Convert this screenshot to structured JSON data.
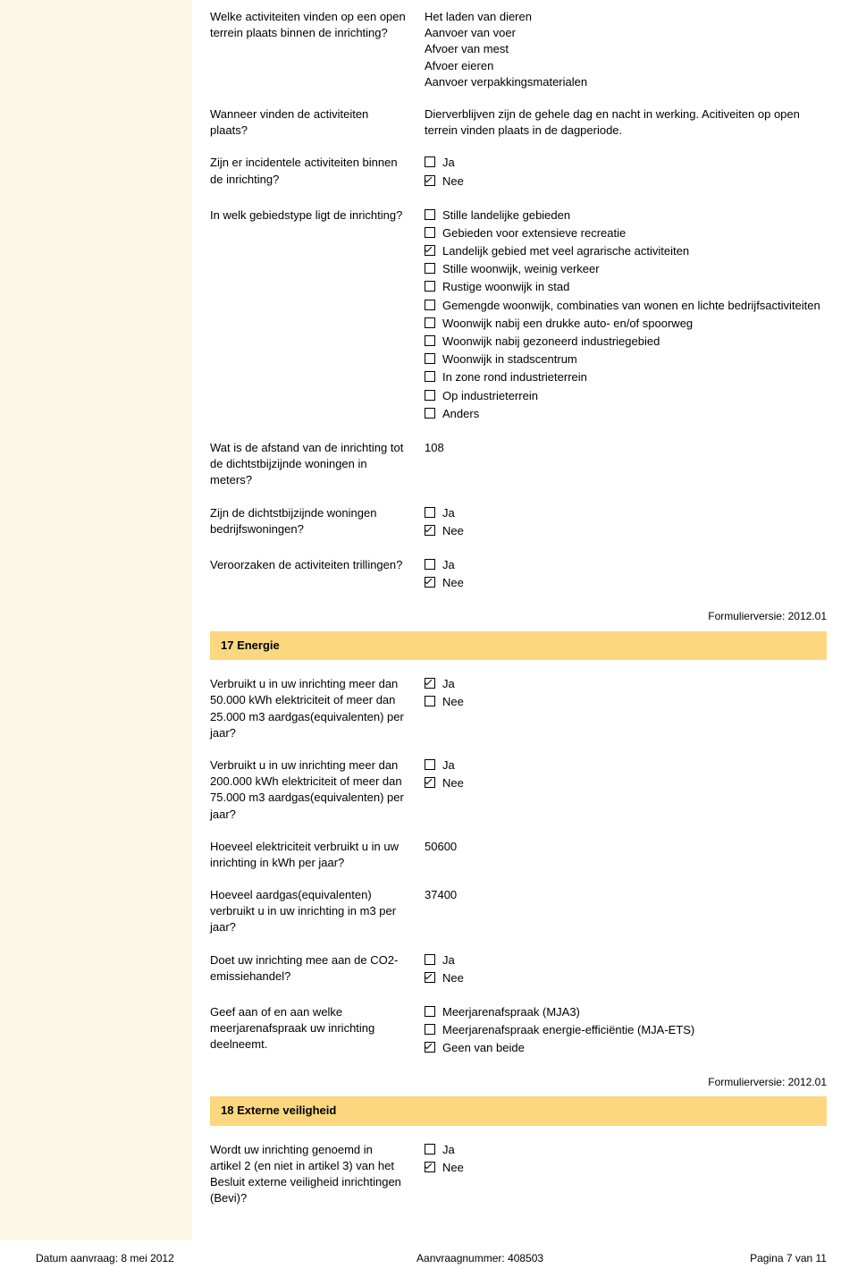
{
  "q1": {
    "label": "Welke activiteiten vinden op een open terrein plaats binnen de inrichting?",
    "answer": "Het laden van dieren\nAanvoer van voer\nAfvoer van mest\nAfvoer eieren\nAanvoer verpakkingsmaterialen"
  },
  "q2": {
    "label": "Wanneer vinden de activiteiten plaats?",
    "answer": "Dierverblijven zijn de gehele dag en nacht in werking. Acitiveiten op open terrein vinden plaats in de dagperiode."
  },
  "q3": {
    "label": "Zijn er incidentele activiteiten binnen de inrichting?",
    "options": [
      {
        "label": "Ja",
        "checked": false
      },
      {
        "label": "Nee",
        "checked": true
      }
    ]
  },
  "q4": {
    "label": "In welk gebiedstype ligt de inrichting?",
    "options": [
      {
        "label": "Stille landelijke gebieden",
        "checked": false
      },
      {
        "label": "Gebieden voor extensieve recreatie",
        "checked": false
      },
      {
        "label": "Landelijk gebied met veel agrarische activiteiten",
        "checked": true
      },
      {
        "label": "Stille woonwijk, weinig verkeer",
        "checked": false
      },
      {
        "label": "Rustige woonwijk in stad",
        "checked": false
      },
      {
        "label": "Gemengde woonwijk, combinaties van wonen en lichte bedrijfsactiviteiten",
        "checked": false
      },
      {
        "label": "Woonwijk nabij een drukke auto- en/of spoorweg",
        "checked": false
      },
      {
        "label": "Woonwijk nabij gezoneerd industriegebied",
        "checked": false
      },
      {
        "label": "Woonwijk in stadscentrum",
        "checked": false
      },
      {
        "label": "In zone rond industrieterrein",
        "checked": false
      },
      {
        "label": "Op industrieterrein",
        "checked": false
      },
      {
        "label": "Anders",
        "checked": false
      }
    ]
  },
  "q5": {
    "label": "Wat is de afstand van de inrichting tot de dichtstbijzijnde woningen in meters?",
    "answer": "108"
  },
  "q6": {
    "label": "Zijn de dichtstbijzijnde woningen bedrijfswoningen?",
    "options": [
      {
        "label": "Ja",
        "checked": false
      },
      {
        "label": "Nee",
        "checked": true
      }
    ]
  },
  "q7": {
    "label": "Veroorzaken de activiteiten trillingen?",
    "options": [
      {
        "label": "Ja",
        "checked": false
      },
      {
        "label": "Nee",
        "checked": true
      }
    ]
  },
  "version": "Formulierversie: 2012.01",
  "section17": "17 Energie",
  "q8": {
    "label": "Verbruikt u in uw inrichting meer dan 50.000 kWh elektriciteit of meer dan 25.000 m3 aardgas(equivalenten) per jaar?",
    "options": [
      {
        "label": "Ja",
        "checked": true
      },
      {
        "label": "Nee",
        "checked": false
      }
    ]
  },
  "q9": {
    "label": "Verbruikt u in uw inrichting meer dan 200.000 kWh elektriciteit of meer dan 75.000 m3 aardgas(equivalenten) per jaar?",
    "options": [
      {
        "label": "Ja",
        "checked": false
      },
      {
        "label": "Nee",
        "checked": true
      }
    ]
  },
  "q10": {
    "label": "Hoeveel elektriciteit verbruikt u in uw inrichting in kWh per jaar?",
    "answer": "50600"
  },
  "q11": {
    "label": "Hoeveel aardgas(equivalenten) verbruikt u in uw inrichting in m3 per jaar?",
    "answer": "37400"
  },
  "q12": {
    "label": "Doet uw inrichting mee aan de CO2- emissiehandel?",
    "options": [
      {
        "label": "Ja",
        "checked": false
      },
      {
        "label": "Nee",
        "checked": true
      }
    ]
  },
  "q13": {
    "label": "Geef aan of en aan welke meerjarenafspraak uw inrichting deelneemt.",
    "options": [
      {
        "label": "Meerjarenafspraak (MJA3)",
        "checked": false
      },
      {
        "label": "Meerjarenafspraak energie-efficiëntie (MJA-ETS)",
        "checked": false
      },
      {
        "label": "Geen van beide",
        "checked": true
      }
    ]
  },
  "section18": "18 Externe veiligheid",
  "q14": {
    "label": "Wordt uw inrichting genoemd in artikel 2 (en niet in artikel 3) van het Besluit externe veiligheid inrichtingen (Bevi)?",
    "options": [
      {
        "label": "Ja",
        "checked": false
      },
      {
        "label": "Nee",
        "checked": true
      }
    ]
  },
  "footer": {
    "date": "Datum aanvraag: 8 mei 2012",
    "number": "Aanvraagnummer: 408503",
    "page": "Pagina 7 van 11"
  }
}
